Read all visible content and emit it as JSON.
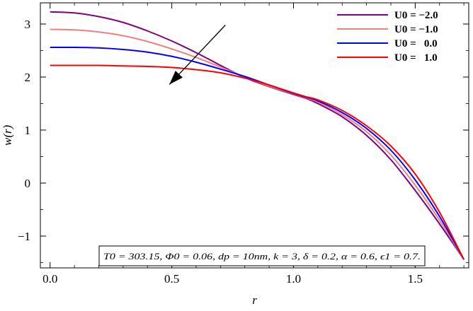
{
  "chart_data": {
    "type": "line",
    "title": "",
    "xlabel": "r",
    "ylabel": "w(r)",
    "xlim": [
      -0.04,
      1.72
    ],
    "ylim": [
      -1.6,
      3.4
    ],
    "x_ticks": [
      {
        "value": 0.0,
        "label": "0.0"
      },
      {
        "value": 0.5,
        "label": "0.5"
      },
      {
        "value": 1.0,
        "label": "1.0"
      },
      {
        "value": 1.5,
        "label": "1.5"
      }
    ],
    "y_ticks": [
      {
        "value": -1,
        "label": "−1"
      },
      {
        "value": 0,
        "label": "0"
      },
      {
        "value": 1,
        "label": "1"
      },
      {
        "value": 2,
        "label": "2"
      },
      {
        "value": 3,
        "label": "3"
      }
    ],
    "grid": false,
    "legend_position": "top-right",
    "series": [
      {
        "name": "U0 = −2.0",
        "color": "#800080",
        "x": [
          0.0,
          0.1,
          0.2,
          0.3,
          0.4,
          0.5,
          0.6,
          0.7,
          0.8,
          0.9,
          1.0,
          1.05,
          1.1,
          1.2,
          1.3,
          1.4,
          1.5,
          1.6,
          1.7
        ],
        "y": [
          3.23,
          3.21,
          3.14,
          3.03,
          2.87,
          2.68,
          2.46,
          2.22,
          1.99,
          1.82,
          1.67,
          1.6,
          1.5,
          1.25,
          0.9,
          0.44,
          -0.14,
          -0.77,
          -1.44
        ]
      },
      {
        "name": "U0 = −1.0",
        "color": "#f08080",
        "x": [
          0.0,
          0.1,
          0.2,
          0.3,
          0.4,
          0.5,
          0.6,
          0.7,
          0.8,
          0.9,
          1.0,
          1.05,
          1.1,
          1.2,
          1.3,
          1.4,
          1.5,
          1.6,
          1.7
        ],
        "y": [
          2.9,
          2.89,
          2.85,
          2.78,
          2.67,
          2.53,
          2.37,
          2.19,
          2.0,
          1.83,
          1.68,
          1.61,
          1.53,
          1.29,
          0.97,
          0.53,
          -0.04,
          -0.7,
          -1.44
        ]
      },
      {
        "name": "U0 = 0.0",
        "color": "#0000ff",
        "x": [
          0.0,
          0.1,
          0.2,
          0.3,
          0.4,
          0.5,
          0.6,
          0.7,
          0.8,
          0.9,
          1.0,
          1.05,
          1.1,
          1.2,
          1.3,
          1.4,
          1.5,
          1.6,
          1.7
        ],
        "y": [
          2.56,
          2.56,
          2.55,
          2.52,
          2.47,
          2.39,
          2.28,
          2.15,
          2.01,
          1.85,
          1.69,
          1.62,
          1.55,
          1.33,
          1.03,
          0.62,
          0.06,
          -0.63,
          -1.44
        ]
      },
      {
        "name": "U0 = 1.0",
        "color": "#ff0000",
        "x": [
          0.0,
          0.1,
          0.2,
          0.3,
          0.4,
          0.5,
          0.6,
          0.7,
          0.8,
          0.9,
          1.0,
          1.05,
          1.1,
          1.2,
          1.3,
          1.4,
          1.5,
          1.6,
          1.7
        ],
        "y": [
          2.22,
          2.22,
          2.22,
          2.21,
          2.2,
          2.18,
          2.14,
          2.08,
          1.98,
          1.85,
          1.7,
          1.63,
          1.57,
          1.37,
          1.08,
          0.7,
          0.17,
          -0.55,
          -1.44
        ]
      }
    ],
    "legend_entries": [
      "U0 = −2.0",
      "U0 = −1.0",
      "U0 =   0.0",
      "U0 =   1.0"
    ],
    "annotation": "T0 = 303.15, Φ0 = 0.06, dp = 10nm, k = 3, δ = 0.2, α = 0.6, ϵ1 = 0.7."
  }
}
